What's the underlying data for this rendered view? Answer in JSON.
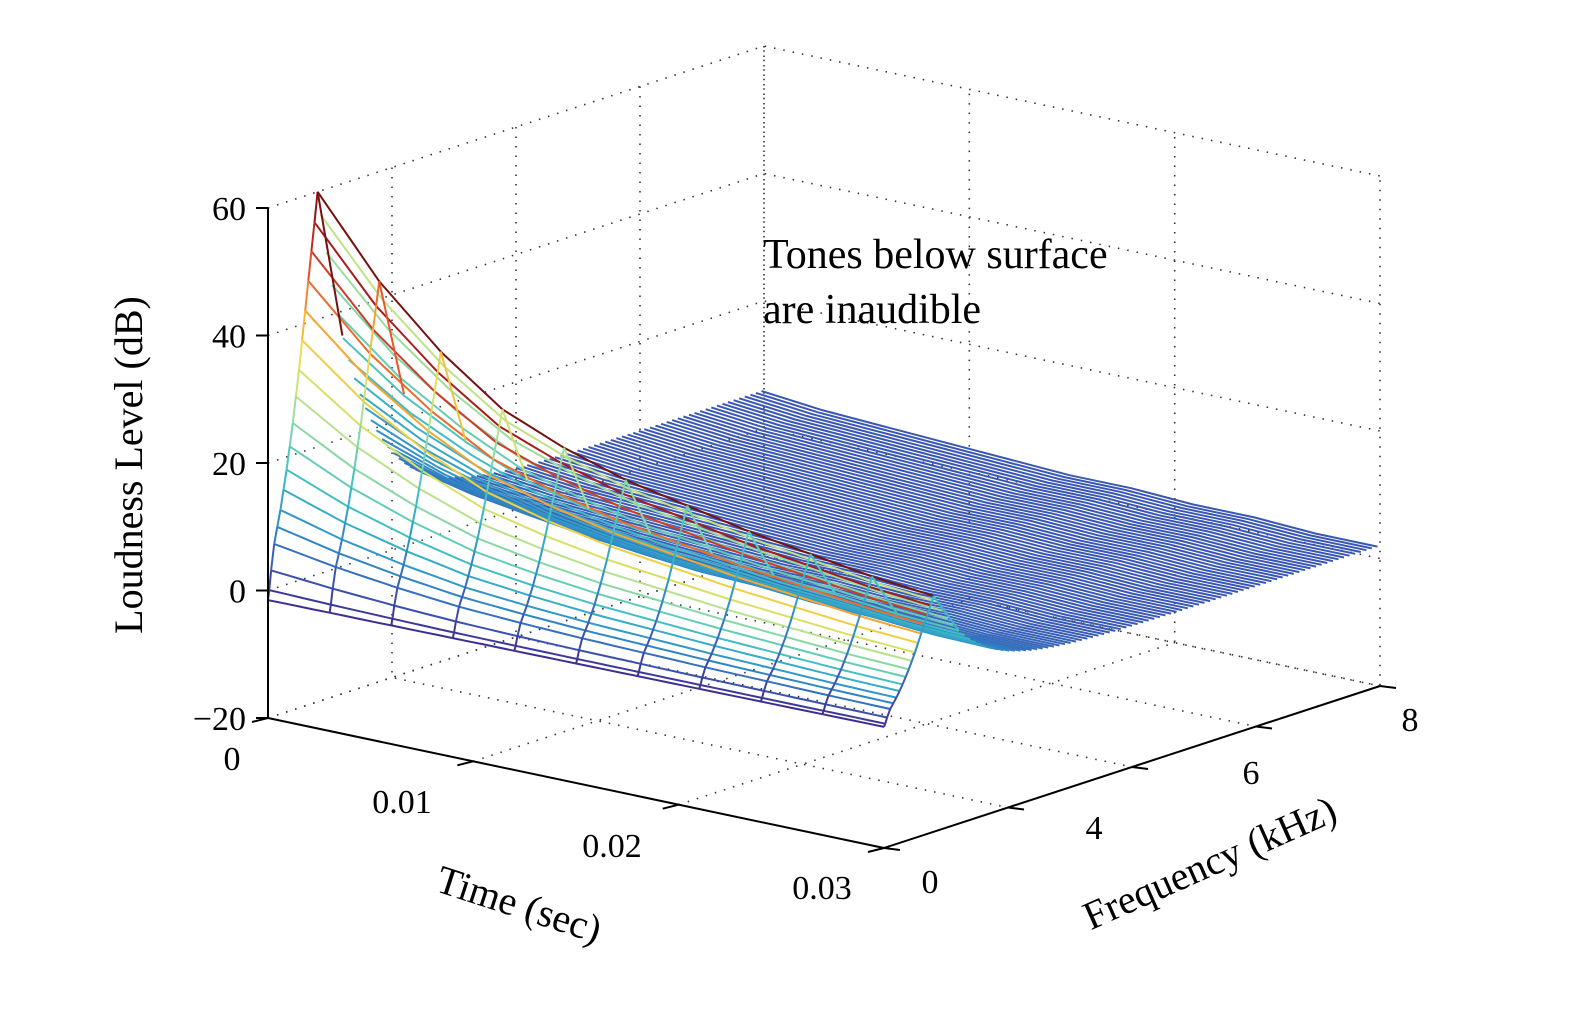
{
  "chart_data": {
    "type": "surface",
    "title": "",
    "xlabel": "Time (sec)",
    "ylabel": "Frequency (kHz)",
    "zlabel": "Loudness Level (dB)",
    "xlim": [
      0,
      0.03
    ],
    "ylim": [
      0,
      8
    ],
    "zlim": [
      -20,
      60
    ],
    "x_ticks": [
      "0",
      "0.01",
      "0.02",
      "0.03"
    ],
    "y_ticks": [
      "0",
      "4",
      "6",
      "8"
    ],
    "z_ticks": [
      "60",
      "40",
      "20",
      "0",
      "−20"
    ],
    "grid": true,
    "colormap": "parula-like (dark blue to dark red)",
    "annotation": [
      "Tones below surface",
      "are inaudible"
    ],
    "surface": {
      "time_samples": [
        0,
        0.003,
        0.006,
        0.009,
        0.012,
        0.015,
        0.018,
        0.021,
        0.024,
        0.027,
        0.03
      ],
      "profile_at_time_0_db": [
        -1.5,
        0,
        3,
        7,
        12,
        18,
        25,
        33,
        42,
        51,
        58,
        60
      ],
      "profile_at_time_0_freq_khz": [
        0,
        0.02,
        0.05,
        0.1,
        0.2,
        0.3,
        0.4,
        0.5,
        0.6,
        0.7,
        0.78,
        0.8
      ],
      "peak_db_by_time": [
        60,
        48,
        39,
        32,
        28,
        25,
        23,
        21,
        19.5,
        18,
        17
      ],
      "plateau_db_by_time": [
        6,
        5,
        4.5,
        4,
        3.5,
        3,
        3,
        2.5,
        2.5,
        2,
        2
      ]
    }
  },
  "colors": {
    "colormap": [
      "#3e2a8c",
      "#3a5ab5",
      "#2e8fc8",
      "#3ab9c8",
      "#72d3b0",
      "#bde38a",
      "#f0dd4a",
      "#f6a531",
      "#e8502a",
      "#b01d1d",
      "#6a0f0f"
    ]
  }
}
